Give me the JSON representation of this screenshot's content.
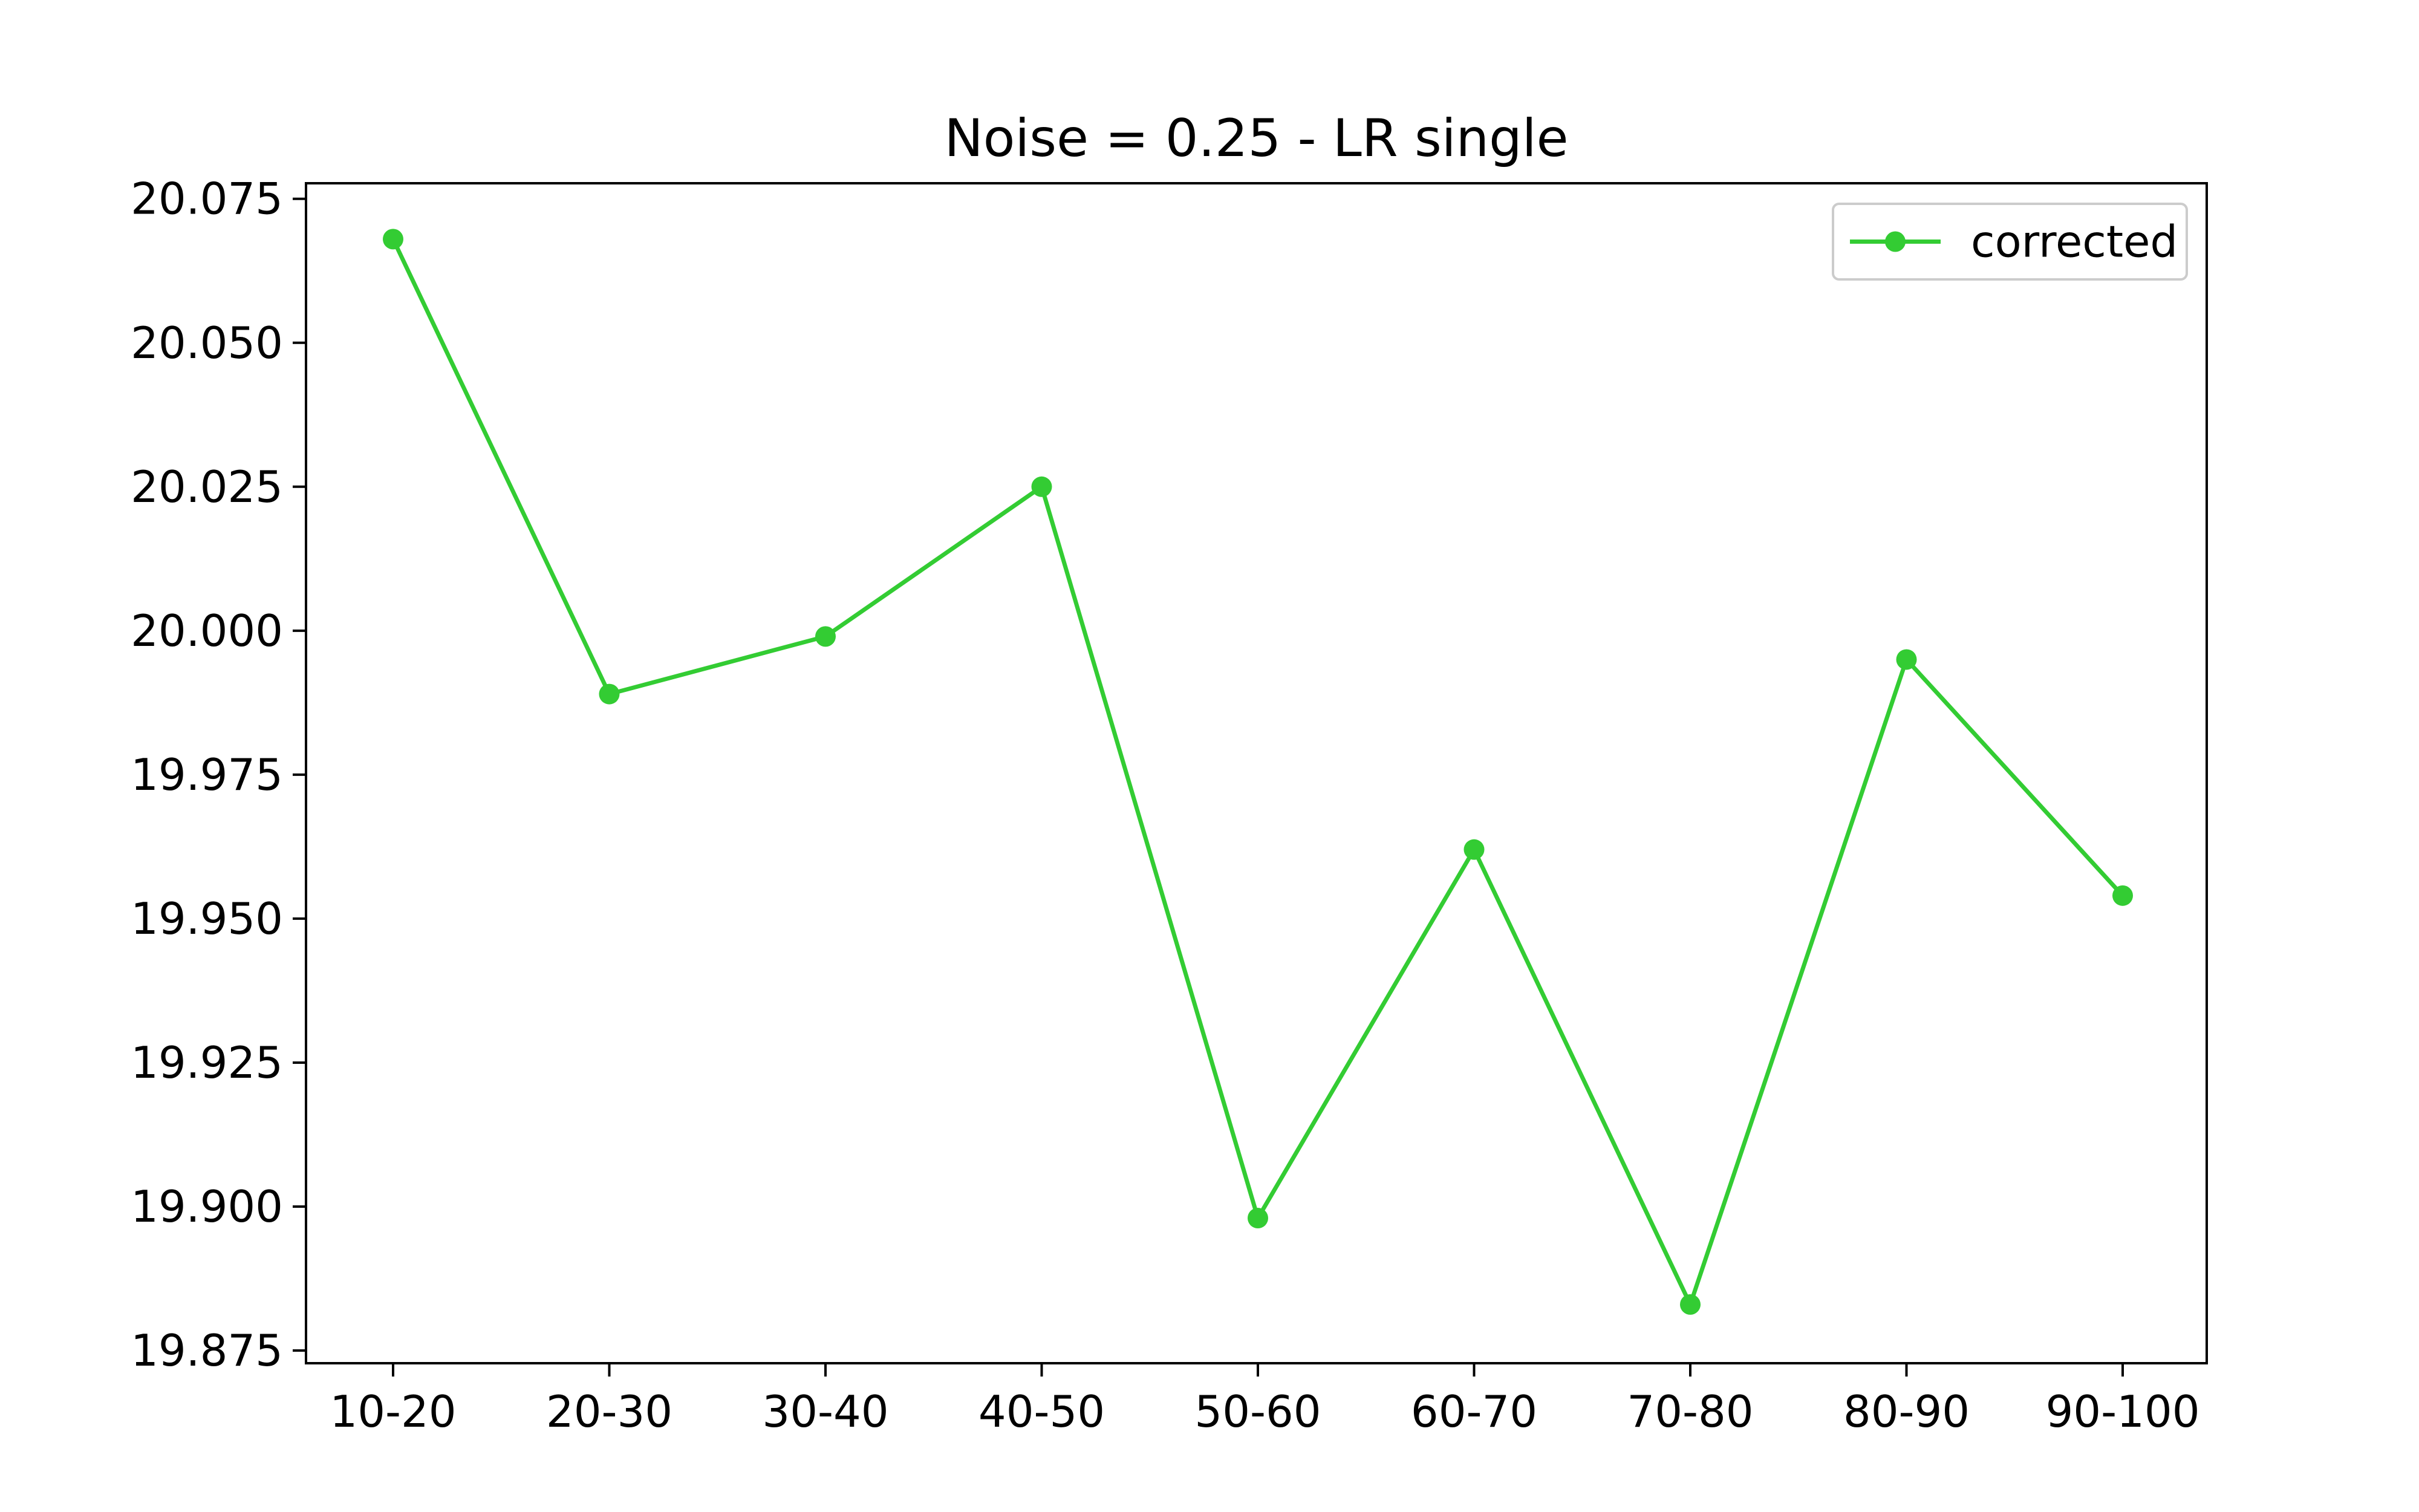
{
  "chart_data": {
    "type": "line",
    "title": "Noise = 0.25 - LR single",
    "xlabel": "",
    "ylabel": "",
    "categories": [
      "10-20",
      "20-30",
      "30-40",
      "40-50",
      "50-60",
      "60-70",
      "70-80",
      "80-90",
      "90-100"
    ],
    "series": [
      {
        "name": "corrected",
        "color": "#33cc33",
        "marker": "circle",
        "values": [
          20.068,
          19.989,
          19.999,
          20.025,
          19.898,
          19.962,
          19.883,
          19.995,
          19.954
        ]
      }
    ],
    "ylim": [
      19.8728,
      20.0777
    ],
    "yticks": [
      19.875,
      19.9,
      19.925,
      19.95,
      19.975,
      20.0,
      20.025,
      20.05,
      20.075
    ],
    "ytick_labels": [
      "19.875",
      "19.900",
      "19.925",
      "19.950",
      "19.975",
      "20.000",
      "20.025",
      "20.050",
      "20.075"
    ],
    "grid": false,
    "legend": "top-right"
  }
}
